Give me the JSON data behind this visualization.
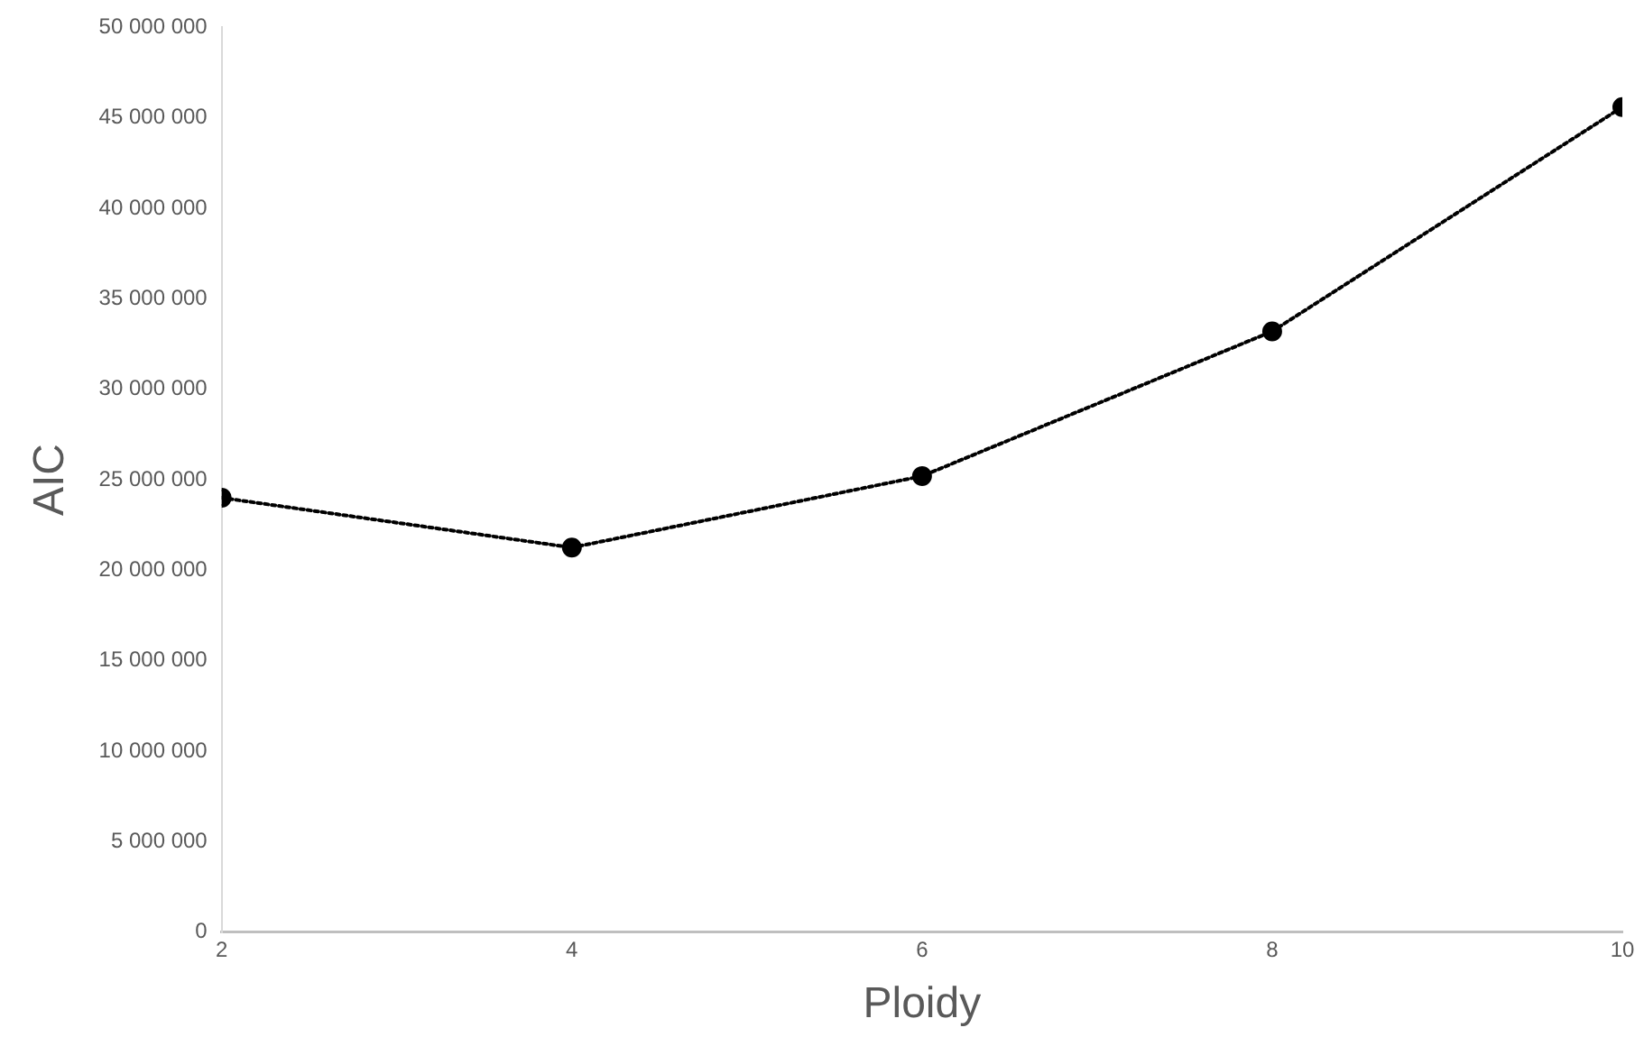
{
  "chart_data": {
    "type": "line",
    "xlabel": "Ploidy",
    "ylabel": "AIC",
    "x": [
      2,
      4,
      6,
      8,
      10
    ],
    "series": [
      {
        "color": "#000000",
        "values": [
          24000000,
          21250000,
          25200000,
          33200000,
          45600000
        ]
      }
    ],
    "xlim": [
      2,
      10
    ],
    "xticks": [
      2,
      4,
      6,
      8,
      10
    ],
    "ylim": [
      0,
      50000000
    ],
    "yticks": [
      {
        "value": 0,
        "label": "0"
      },
      {
        "value": 5000000,
        "label": "5 000 000"
      },
      {
        "value": 10000000,
        "label": "10 000 000"
      },
      {
        "value": 15000000,
        "label": "15 000 000"
      },
      {
        "value": 20000000,
        "label": "20 000 000"
      },
      {
        "value": 25000000,
        "label": "25 000 000"
      },
      {
        "value": 30000000,
        "label": "30 000 000"
      },
      {
        "value": 35000000,
        "label": "35 000 000"
      },
      {
        "value": 40000000,
        "label": "40 000 000"
      },
      {
        "value": 45000000,
        "label": "45 000 000"
      },
      {
        "value": 50000000,
        "label": "50 000 000"
      }
    ],
    "grid": false,
    "legend": false,
    "marker": "circle",
    "line_style": "dotted"
  }
}
